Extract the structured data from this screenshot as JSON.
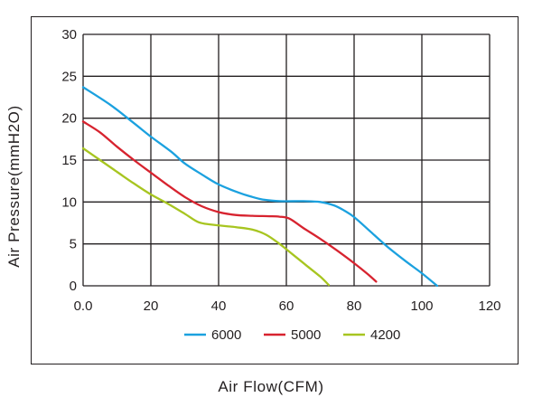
{
  "chart_data": {
    "type": "line",
    "xlabel": "Air Flow(CFM)",
    "ylabel": "Air Pressure(mmH2O)",
    "xlim": [
      0,
      120
    ],
    "ylim": [
      0,
      30
    ],
    "x_ticks": [
      "0.0",
      "20",
      "40",
      "60",
      "80",
      "100",
      "120"
    ],
    "y_ticks": [
      "0",
      "5",
      "10",
      "15",
      "20",
      "25",
      "30"
    ],
    "grid": true,
    "legend_position": "bottom",
    "series": [
      {
        "name": "6000",
        "color": "#1ba1df",
        "points": [
          [
            0,
            23.7
          ],
          [
            8,
            21.6
          ],
          [
            15,
            19.4
          ],
          [
            20,
            17.8
          ],
          [
            26,
            16.0
          ],
          [
            30,
            14.6
          ],
          [
            35,
            13.3
          ],
          [
            40,
            12.1
          ],
          [
            46,
            11.1
          ],
          [
            50,
            10.6
          ],
          [
            53,
            10.3
          ],
          [
            58,
            10.1
          ],
          [
            65,
            10.1
          ],
          [
            70,
            10.0
          ],
          [
            74,
            9.6
          ],
          [
            77,
            9.0
          ],
          [
            80,
            8.2
          ],
          [
            85,
            6.4
          ],
          [
            90,
            4.6
          ],
          [
            95,
            3.0
          ],
          [
            100,
            1.5
          ],
          [
            104.5,
            0
          ]
        ]
      },
      {
        "name": "5000",
        "color": "#d7232f",
        "points": [
          [
            0,
            19.6
          ],
          [
            5,
            18.3
          ],
          [
            10,
            16.6
          ],
          [
            15,
            15.0
          ],
          [
            20,
            13.5
          ],
          [
            25,
            12.0
          ],
          [
            30,
            10.6
          ],
          [
            35,
            9.5
          ],
          [
            40,
            8.8
          ],
          [
            45,
            8.45
          ],
          [
            50,
            8.35
          ],
          [
            55,
            8.3
          ],
          [
            58,
            8.25
          ],
          [
            61,
            8.0
          ],
          [
            65,
            6.9
          ],
          [
            70,
            5.6
          ],
          [
            75,
            4.2
          ],
          [
            80,
            2.7
          ],
          [
            84,
            1.4
          ],
          [
            86.5,
            0.5
          ]
        ]
      },
      {
        "name": "4200",
        "color": "#a7c520",
        "points": [
          [
            0,
            16.4
          ],
          [
            5,
            15.0
          ],
          [
            10,
            13.6
          ],
          [
            15,
            12.2
          ],
          [
            20,
            10.9
          ],
          [
            25,
            9.8
          ],
          [
            30,
            8.6
          ],
          [
            34,
            7.6
          ],
          [
            38,
            7.3
          ],
          [
            45,
            7.0
          ],
          [
            50,
            6.7
          ],
          [
            54,
            6.1
          ],
          [
            58,
            5.0
          ],
          [
            62,
            3.7
          ],
          [
            66,
            2.4
          ],
          [
            70,
            1.1
          ],
          [
            72.5,
            0.1
          ]
        ]
      }
    ]
  }
}
